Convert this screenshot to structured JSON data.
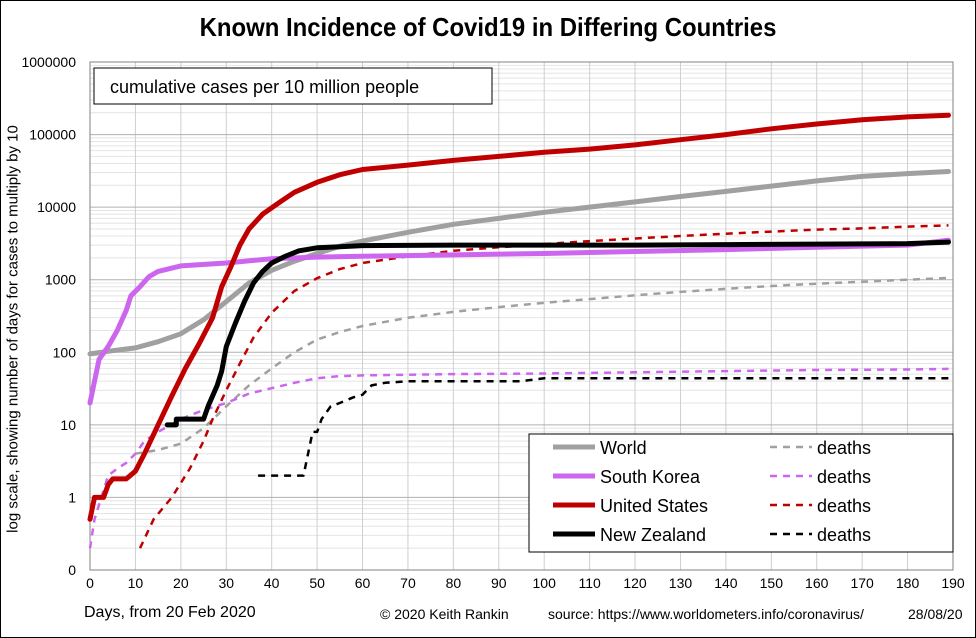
{
  "chart_data": {
    "type": "line",
    "title": "Known Incidence of Covid19 in Differing Countries",
    "annotation": "cumulative  cases per 10 million people",
    "xlabel": "Days, from 20 Feb 2020",
    "ylabel": "log scale, showing number of days for cases to multiply by 10",
    "xlim": [
      0,
      190
    ],
    "ylim": [
      0.1,
      1000000
    ],
    "yscale": "log",
    "grid": true,
    "legend_position": "bottom-right",
    "x_ticks": [
      "0",
      "10",
      "20",
      "30",
      "40",
      "50",
      "60",
      "70",
      "80",
      "90",
      "100",
      "110",
      "120",
      "130",
      "140",
      "150",
      "160",
      "170",
      "180",
      "190"
    ],
    "y_ticks": [
      {
        "value": 0.1,
        "label": "0"
      },
      {
        "value": 1,
        "label": "1"
      },
      {
        "value": 10,
        "label": "10"
      },
      {
        "value": 100,
        "label": "100"
      },
      {
        "value": 1000,
        "label": "1000"
      },
      {
        "value": 10000,
        "label": "10000"
      },
      {
        "value": 100000,
        "label": "100000"
      },
      {
        "value": 1000000,
        "label": "1000000"
      }
    ],
    "series": [
      {
        "name": "World",
        "color": "#a0a0a0",
        "dash": false,
        "points": [
          [
            0,
            95
          ],
          [
            5,
            105
          ],
          [
            10,
            115
          ],
          [
            15,
            140
          ],
          [
            20,
            180
          ],
          [
            25,
            280
          ],
          [
            30,
            500
          ],
          [
            35,
            900
          ],
          [
            40,
            1350
          ],
          [
            45,
            1800
          ],
          [
            50,
            2300
          ],
          [
            55,
            2900
          ],
          [
            60,
            3400
          ],
          [
            70,
            4500
          ],
          [
            80,
            5800
          ],
          [
            90,
            7000
          ],
          [
            100,
            8500
          ],
          [
            110,
            10000
          ],
          [
            120,
            11800
          ],
          [
            130,
            14000
          ],
          [
            140,
            16500
          ],
          [
            150,
            19500
          ],
          [
            160,
            23000
          ],
          [
            170,
            26500
          ],
          [
            180,
            29000
          ],
          [
            189,
            31000
          ]
        ]
      },
      {
        "name": "deaths",
        "legend_for": "World",
        "color": "#a0a0a0",
        "dash": true,
        "points": [
          [
            10,
            4
          ],
          [
            15,
            4.5
          ],
          [
            20,
            5.5
          ],
          [
            25,
            9
          ],
          [
            30,
            18
          ],
          [
            35,
            35
          ],
          [
            40,
            60
          ],
          [
            45,
            100
          ],
          [
            50,
            150
          ],
          [
            55,
            190
          ],
          [
            60,
            230
          ],
          [
            70,
            300
          ],
          [
            80,
            360
          ],
          [
            90,
            420
          ],
          [
            100,
            480
          ],
          [
            110,
            540
          ],
          [
            120,
            610
          ],
          [
            130,
            680
          ],
          [
            140,
            750
          ],
          [
            150,
            820
          ],
          [
            160,
            880
          ],
          [
            170,
            940
          ],
          [
            180,
            1000
          ],
          [
            189,
            1060
          ]
        ]
      },
      {
        "name": "South Korea",
        "color": "#cc66ee",
        "dash": false,
        "points": [
          [
            0,
            20
          ],
          [
            1,
            40
          ],
          [
            2,
            80
          ],
          [
            4,
            120
          ],
          [
            6,
            200
          ],
          [
            8,
            380
          ],
          [
            9,
            600
          ],
          [
            11,
            800
          ],
          [
            13,
            1100
          ],
          [
            15,
            1300
          ],
          [
            20,
            1550
          ],
          [
            30,
            1700
          ],
          [
            40,
            1950
          ],
          [
            50,
            2050
          ],
          [
            60,
            2100
          ],
          [
            80,
            2200
          ],
          [
            100,
            2300
          ],
          [
            120,
            2450
          ],
          [
            140,
            2600
          ],
          [
            160,
            2800
          ],
          [
            180,
            3000
          ],
          [
            189,
            3500
          ]
        ]
      },
      {
        "name": "deaths",
        "legend_for": "South Korea",
        "color": "#cc66ee",
        "dash": true,
        "points": [
          [
            0,
            0.2
          ],
          [
            1,
            0.5
          ],
          [
            2,
            0.8
          ],
          [
            4,
            2
          ],
          [
            6,
            2.5
          ],
          [
            8,
            3
          ],
          [
            10,
            4
          ],
          [
            12,
            6
          ],
          [
            15,
            8
          ],
          [
            20,
            12
          ],
          [
            25,
            16
          ],
          [
            30,
            20
          ],
          [
            35,
            27
          ],
          [
            40,
            32
          ],
          [
            45,
            38
          ],
          [
            50,
            44
          ],
          [
            55,
            47
          ],
          [
            60,
            48
          ],
          [
            80,
            50
          ],
          [
            100,
            51
          ],
          [
            120,
            53
          ],
          [
            140,
            55
          ],
          [
            160,
            57
          ],
          [
            180,
            58
          ],
          [
            189,
            59
          ]
        ]
      },
      {
        "name": "United States",
        "color": "#c00000",
        "dash": false,
        "points": [
          [
            0,
            0.5
          ],
          [
            1,
            1
          ],
          [
            2,
            1
          ],
          [
            3,
            1
          ],
          [
            4,
            1.5
          ],
          [
            5,
            1.8
          ],
          [
            8,
            1.8
          ],
          [
            10,
            2.3
          ],
          [
            12,
            4
          ],
          [
            15,
            10
          ],
          [
            18,
            25
          ],
          [
            21,
            60
          ],
          [
            24,
            130
          ],
          [
            27,
            300
          ],
          [
            29,
            800
          ],
          [
            31,
            1500
          ],
          [
            33,
            3000
          ],
          [
            35,
            5000
          ],
          [
            38,
            8000
          ],
          [
            42,
            12000
          ],
          [
            45,
            16000
          ],
          [
            50,
            22000
          ],
          [
            55,
            28000
          ],
          [
            60,
            33000
          ],
          [
            70,
            38000
          ],
          [
            80,
            44000
          ],
          [
            90,
            50000
          ],
          [
            100,
            57000
          ],
          [
            110,
            63000
          ],
          [
            120,
            72000
          ],
          [
            130,
            85000
          ],
          [
            140,
            100000
          ],
          [
            150,
            120000
          ],
          [
            160,
            140000
          ],
          [
            170,
            160000
          ],
          [
            180,
            175000
          ],
          [
            189,
            185000
          ]
        ]
      },
      {
        "name": "deaths",
        "legend_for": "United States",
        "color": "#c00000",
        "dash": true,
        "points": [
          [
            11,
            0.2
          ],
          [
            14,
            0.5
          ],
          [
            18,
            1
          ],
          [
            22,
            2.5
          ],
          [
            25,
            6
          ],
          [
            27,
            12
          ],
          [
            30,
            30
          ],
          [
            33,
            70
          ],
          [
            36,
            160
          ],
          [
            40,
            350
          ],
          [
            45,
            700
          ],
          [
            50,
            1050
          ],
          [
            55,
            1400
          ],
          [
            60,
            1700
          ],
          [
            70,
            2100
          ],
          [
            80,
            2500
          ],
          [
            90,
            2800
          ],
          [
            100,
            3100
          ],
          [
            110,
            3400
          ],
          [
            120,
            3700
          ],
          [
            130,
            4000
          ],
          [
            140,
            4300
          ],
          [
            150,
            4600
          ],
          [
            160,
            4900
          ],
          [
            170,
            5100
          ],
          [
            180,
            5400
          ],
          [
            189,
            5600
          ]
        ]
      },
      {
        "name": "New Zealand",
        "color": "#000000",
        "dash": false,
        "points": [
          [
            17,
            10
          ],
          [
            19,
            10
          ],
          [
            19,
            12
          ],
          [
            25,
            12
          ],
          [
            26,
            18
          ],
          [
            28,
            35
          ],
          [
            29,
            55
          ],
          [
            30,
            120
          ],
          [
            32,
            250
          ],
          [
            34,
            500
          ],
          [
            36,
            900
          ],
          [
            38,
            1300
          ],
          [
            40,
            1700
          ],
          [
            43,
            2100
          ],
          [
            46,
            2500
          ],
          [
            50,
            2750
          ],
          [
            55,
            2850
          ],
          [
            60,
            2950
          ],
          [
            80,
            3000
          ],
          [
            100,
            3000
          ],
          [
            120,
            3000
          ],
          [
            140,
            3050
          ],
          [
            160,
            3100
          ],
          [
            180,
            3150
          ],
          [
            189,
            3300
          ]
        ]
      },
      {
        "name": "deaths",
        "legend_for": "New Zealand",
        "color": "#000000",
        "dash": true,
        "points": [
          [
            37,
            2
          ],
          [
            47,
            2
          ],
          [
            49,
            8
          ],
          [
            50,
            8
          ],
          [
            51,
            12
          ],
          [
            53,
            18
          ],
          [
            55,
            20
          ],
          [
            58,
            24
          ],
          [
            60,
            26
          ],
          [
            62,
            35
          ],
          [
            65,
            38
          ],
          [
            70,
            40
          ],
          [
            80,
            40
          ],
          [
            95,
            40
          ],
          [
            100,
            44
          ],
          [
            189,
            44
          ]
        ]
      }
    ],
    "legend": [
      {
        "label": "World",
        "color": "#a0a0a0",
        "dash": false
      },
      {
        "label": "deaths",
        "color": "#a0a0a0",
        "dash": true
      },
      {
        "label": "South Korea",
        "color": "#cc66ee",
        "dash": false
      },
      {
        "label": "deaths",
        "color": "#cc66ee",
        "dash": true
      },
      {
        "label": "United States",
        "color": "#c00000",
        "dash": false
      },
      {
        "label": "deaths",
        "color": "#c00000",
        "dash": true
      },
      {
        "label": "New Zealand",
        "color": "#000000",
        "dash": false
      },
      {
        "label": "deaths",
        "color": "#000000",
        "dash": true
      }
    ]
  },
  "footer": {
    "days_label": "Days, from 20 Feb 2020",
    "copyright": "© 2020  Keith  Rankin",
    "source": "source:  https://www.worldometers.info/coronavirus/",
    "date": "28/08/20"
  }
}
